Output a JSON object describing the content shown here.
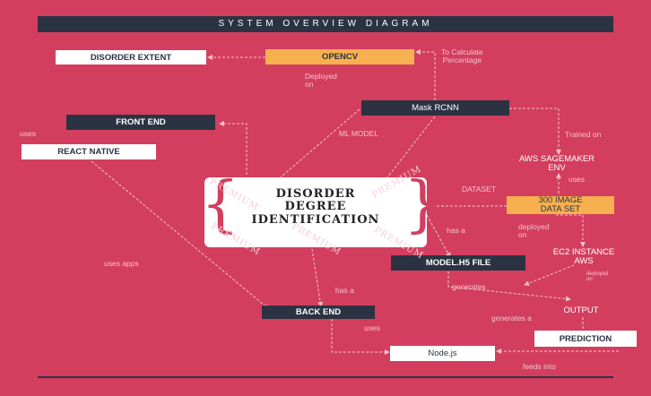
{
  "title": "SYSTEM OVERVIEW DIAGRAM",
  "nodes": {
    "disorder_extent": "DISORDER EXTENT",
    "opencv": "OPENCV",
    "mask_rcnn": "Mask RCNN",
    "front_end": "FRONT END",
    "react_native": "REACT NATIVE",
    "sagemaker": "AWS SAGEMAKER\nENV",
    "image_dataset": "300 IMAGE\nDATA SET",
    "model_file": "MODEL.H5 FILE",
    "ec2": "EC2 INSTANCE\nAWS",
    "back_end": "BACK END",
    "output": "OUTPUT",
    "prediction": "PREDICTION",
    "nodejs": "Node.js",
    "center": "DISORDER\nDEGREE\nIDENTIFICATION"
  },
  "labels": {
    "to_calculate": "To Calculate\nPercentage",
    "deployed_on": "Deployed\non",
    "ml_model": "ML MODEL",
    "trained_on": "Trained on",
    "uses_left": "uses",
    "uses_sage": "uses",
    "dataset": "DATASET",
    "has_a_top": "has a",
    "deployed_on_2": "deployed\non",
    "uses_apps": "uses apps",
    "deployed_on_small": "deployed\non",
    "generates": "generates",
    "has_a_bottom": "has a",
    "generates_a": "generates a",
    "uses_bottom": "uses",
    "feeds_into": "feeds into"
  },
  "watermark": "PREMIUM",
  "colors": {
    "background": "#d33e5e",
    "dark": "#2b3342",
    "accent": "#f6b04f",
    "label": "#f6c1cb"
  }
}
